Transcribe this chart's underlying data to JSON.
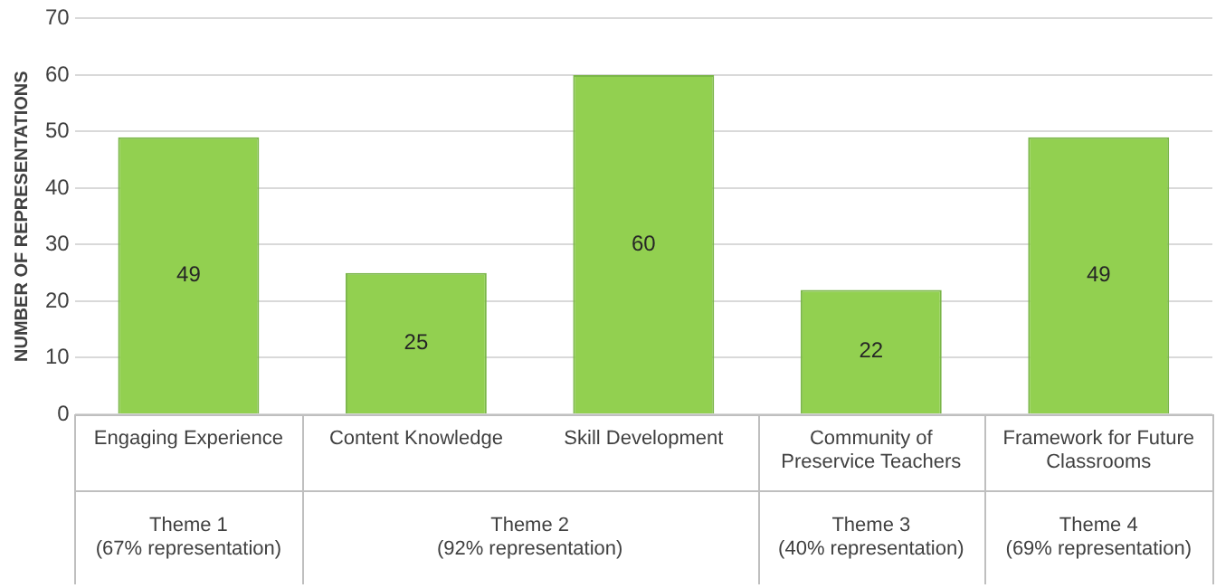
{
  "chart_data": {
    "type": "bar",
    "ylabel": "NUMBER OF REPRESENTATIONS",
    "categories": [
      "Engaging Experience",
      "Content Knowledge",
      "Skill Development",
      "Community of Preservice Teachers",
      "Framework for Future Classrooms"
    ],
    "values": [
      49,
      25,
      60,
      22,
      49
    ],
    "color": "#92d050",
    "ylim": [
      0,
      70
    ],
    "yticks": [
      0,
      10,
      20,
      30,
      40,
      50,
      60,
      70
    ],
    "grid": "y",
    "legend": false,
    "data_labels": true,
    "annotations": [
      "Theme 1\n(67% representation)",
      "Theme 2\n(92% representation)",
      "Theme 3\n(40% representation)",
      "Theme 4\n(69% representation)"
    ]
  }
}
